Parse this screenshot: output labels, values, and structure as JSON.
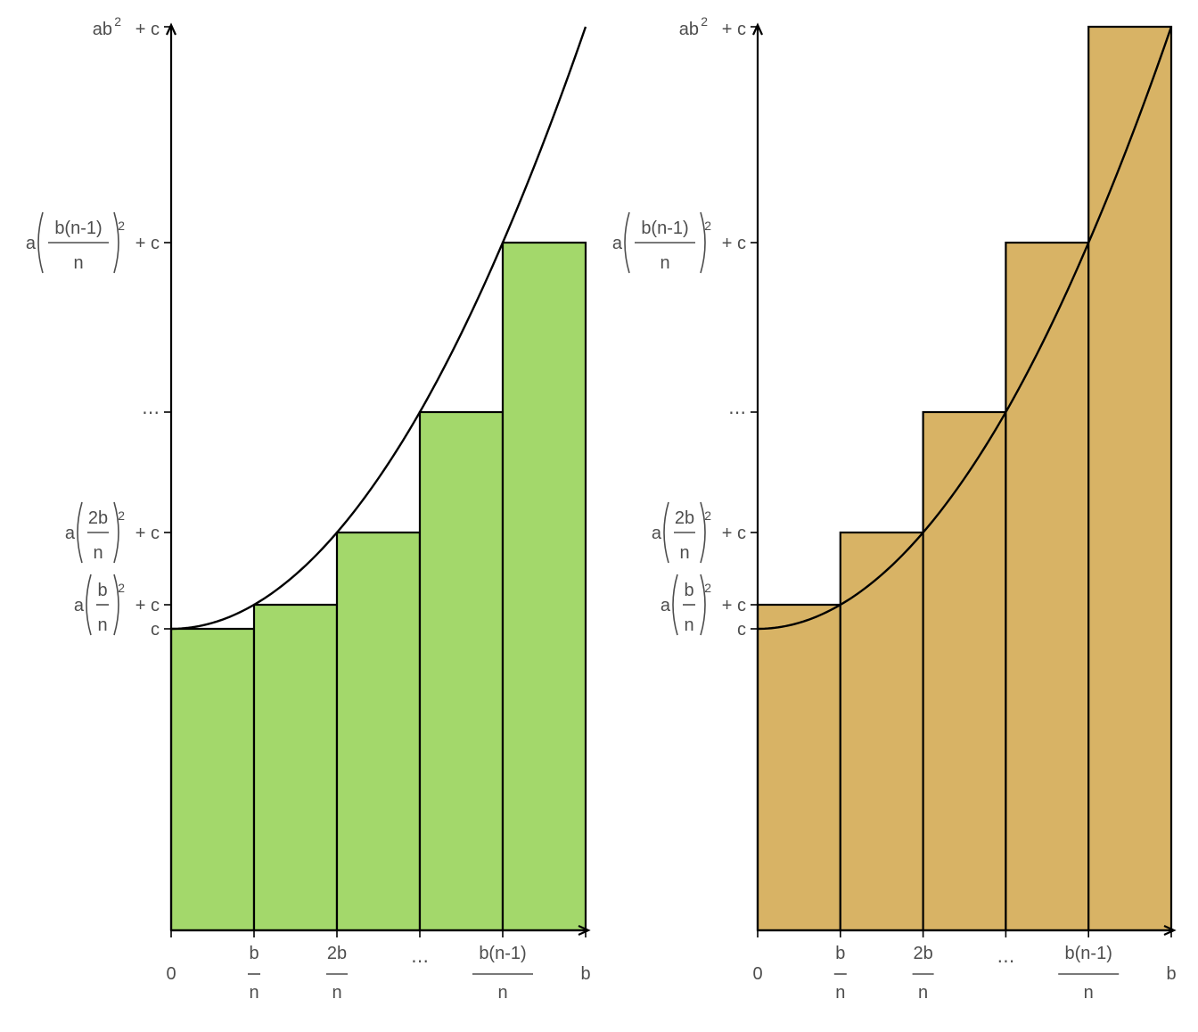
{
  "colors": {
    "left_fill": "#a3d86b",
    "right_fill": "#d8b365",
    "line": "#000000",
    "label": "#4d4d4d"
  },
  "chart_data": [
    {
      "type": "bar",
      "panel": "left",
      "description_type": "left riemann sum",
      "function": "a*x^2 + c",
      "n_shown": 5,
      "x_ticks": [
        {
          "value": 0,
          "label": "0"
        },
        {
          "value": 1,
          "num": "b",
          "den": "n"
        },
        {
          "value": 2,
          "num": "2b",
          "den": "n"
        },
        {
          "value": 3,
          "label": "..."
        },
        {
          "value": 4,
          "num": "b(n-1)",
          "den": "n"
        },
        {
          "value": 5,
          "label": "b"
        }
      ],
      "y_ticks": [
        {
          "value": 1,
          "kind": "plain",
          "label": "c"
        },
        {
          "value": 1.04,
          "kind": "sq",
          "prefix": "a",
          "num": "b",
          "den": "n",
          "exp": "2",
          "suffix": "+ c"
        },
        {
          "value": 1.16,
          "kind": "sq",
          "prefix": "a",
          "num": "2b",
          "den": "n",
          "exp": "2",
          "suffix": "+ c"
        },
        {
          "value": 1.36,
          "kind": "plain",
          "label": "..."
        },
        {
          "value": 1.64,
          "kind": "sq",
          "prefix": "a",
          "num": "b(n-1)",
          "den": "n",
          "exp": "2",
          "suffix": "+ c"
        },
        {
          "value": 2.0,
          "kind": "pow",
          "base": "ab",
          "exp": "2",
          "suffix": "+ c"
        }
      ],
      "bars": [
        {
          "x0": 0,
          "x1": 1,
          "height": 1.0
        },
        {
          "x0": 1,
          "x1": 2,
          "height": 1.04
        },
        {
          "x0": 2,
          "x1": 3,
          "height": 1.16
        },
        {
          "x0": 3,
          "x1": 4,
          "height": 1.36
        },
        {
          "x0": 4,
          "x1": 5,
          "height": 1.64
        }
      ],
      "curve": {
        "c": 1.0,
        "a": 0.04,
        "x_range": [
          0,
          5
        ]
      },
      "xlim": [
        0,
        5
      ],
      "ylim": [
        0,
        2.0
      ]
    },
    {
      "type": "bar",
      "panel": "right",
      "description_type": "right riemann sum",
      "function": "a*x^2 + c",
      "n_shown": 5,
      "x_ticks": [
        {
          "value": 0,
          "label": "0"
        },
        {
          "value": 1,
          "num": "b",
          "den": "n"
        },
        {
          "value": 2,
          "num": "2b",
          "den": "n"
        },
        {
          "value": 3,
          "label": "..."
        },
        {
          "value": 4,
          "num": "b(n-1)",
          "den": "n"
        },
        {
          "value": 5,
          "label": "b"
        }
      ],
      "y_ticks": [
        {
          "value": 1,
          "kind": "plain",
          "label": "c"
        },
        {
          "value": 1.04,
          "kind": "sq",
          "prefix": "a",
          "num": "b",
          "den": "n",
          "exp": "2",
          "suffix": "+ c"
        },
        {
          "value": 1.16,
          "kind": "sq",
          "prefix": "a",
          "num": "2b",
          "den": "n",
          "exp": "2",
          "suffix": "+ c"
        },
        {
          "value": 1.36,
          "kind": "plain",
          "label": "..."
        },
        {
          "value": 1.64,
          "kind": "sq",
          "prefix": "a",
          "num": "b(n-1)",
          "den": "n",
          "exp": "2",
          "suffix": "+ c"
        },
        {
          "value": 2.0,
          "kind": "pow",
          "base": "ab",
          "exp": "2",
          "suffix": "+ c"
        }
      ],
      "bars": [
        {
          "x0": 0,
          "x1": 1,
          "height": 1.04
        },
        {
          "x0": 1,
          "x1": 2,
          "height": 1.16
        },
        {
          "x0": 2,
          "x1": 3,
          "height": 1.36
        },
        {
          "x0": 3,
          "x1": 4,
          "height": 1.64
        },
        {
          "x0": 4,
          "x1": 5,
          "height": 2.0
        }
      ],
      "curve": {
        "c": 1.0,
        "a": 0.04,
        "x_range": [
          0,
          5
        ]
      },
      "xlim": [
        0,
        5
      ],
      "ylim": [
        0,
        2.0
      ]
    }
  ]
}
